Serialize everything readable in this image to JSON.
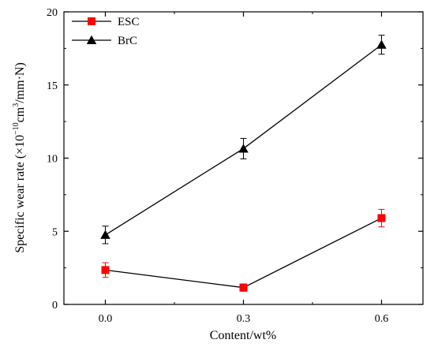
{
  "chart_data": {
    "type": "line",
    "x": [
      0.0,
      0.3,
      0.6
    ],
    "xticks": [
      "0.0",
      "0.3",
      "0.6"
    ],
    "xlim": [
      -0.09,
      0.69
    ],
    "yticks": [
      "0",
      "5",
      "10",
      "15",
      "20"
    ],
    "ylim": [
      0,
      20
    ],
    "xlabel": "Content/wt%",
    "ylabel": {
      "prefix": "Specific wear rate (×10",
      "exp1": "−10",
      "mid": "cm",
      "exp2": "3",
      "suffix": "/mm·N)"
    },
    "legend_position": "top-left",
    "grid": false,
    "series": [
      {
        "name": "ESC",
        "marker": "square",
        "color": "#ff0000",
        "line_color": "#000000",
        "values": [
          2.35,
          1.15,
          5.9
        ],
        "errors": [
          0.5,
          0.25,
          0.6
        ]
      },
      {
        "name": "BrC",
        "marker": "triangle",
        "color": "#000000",
        "line_color": "#000000",
        "values": [
          4.75,
          10.65,
          17.75
        ],
        "errors": [
          0.6,
          0.7,
          0.65
        ]
      }
    ]
  }
}
